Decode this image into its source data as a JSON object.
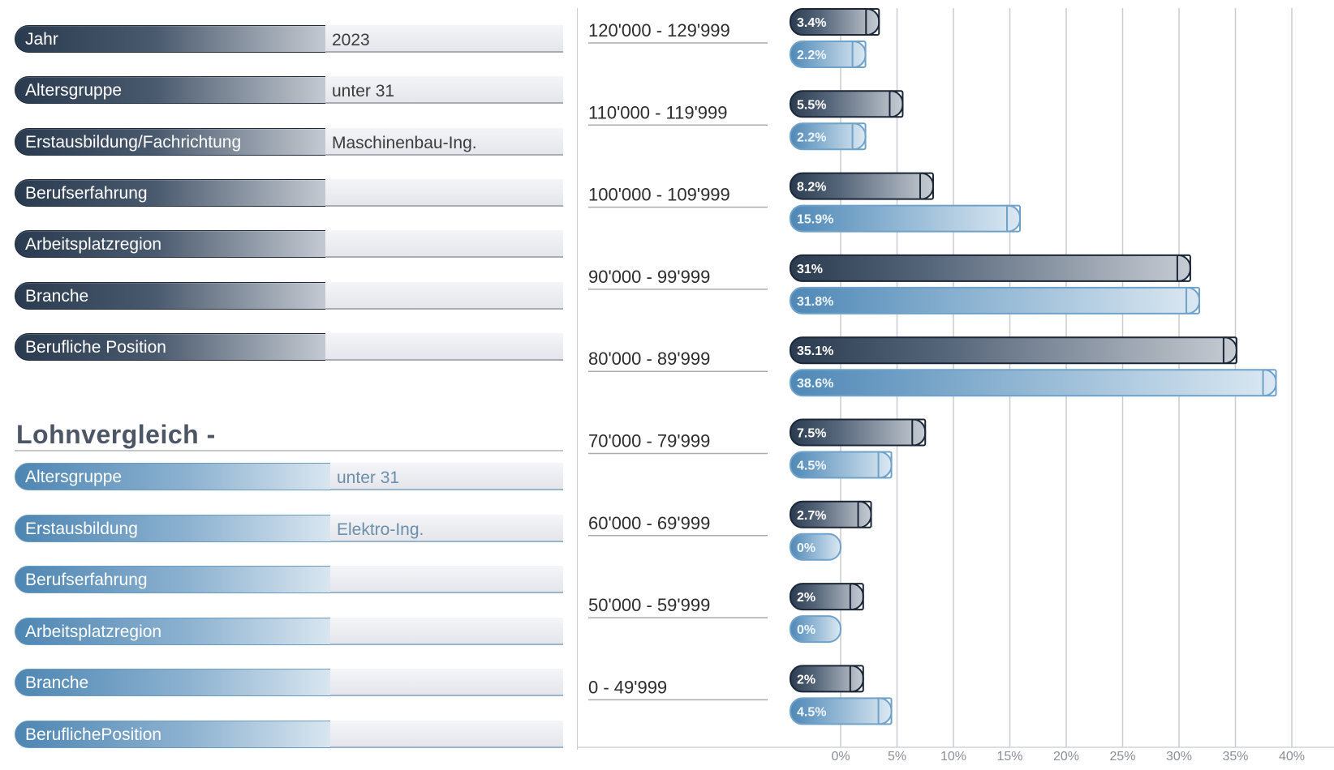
{
  "primary_filters": [
    {
      "label": "Jahr",
      "value": "2023"
    },
    {
      "label": "Altersgruppe",
      "value": "unter 31"
    },
    {
      "label": "Erstausbildung/Fachrichtung",
      "value": "Maschinenbau-Ing."
    },
    {
      "label": "Berufserfahrung",
      "value": ""
    },
    {
      "label": "Arbeitsplatzregion",
      "value": ""
    },
    {
      "label": "Branche",
      "value": ""
    },
    {
      "label": "Berufliche Position",
      "value": ""
    }
  ],
  "comparison": {
    "title": "Lohnvergleich  -",
    "filters": [
      {
        "label": "Altersgruppe",
        "value": "unter 31"
      },
      {
        "label": "Erstausbildung",
        "value": "Elektro-Ing."
      },
      {
        "label": "Berufserfahrung",
        "value": ""
      },
      {
        "label": "Arbeitsplatzregion",
        "value": ""
      },
      {
        "label": "Branche",
        "value": ""
      },
      {
        "label": "BeruflichePosition",
        "value": ""
      }
    ]
  },
  "colors": {
    "primary_series": "#3a4a5e",
    "comparison_series": "#5d95c2",
    "gridline": "#c9ccd1"
  },
  "chart_data": {
    "type": "bar",
    "orientation": "horizontal",
    "categories": [
      "120'000 - 129'999",
      "110'000 - 119'999",
      "100'000 - 109'999",
      "90'000 - 99'999",
      "80'000 - 89'999",
      "70'000 - 79'999",
      "60'000 - 69'999",
      "50'000 - 59'999",
      "0 - 49'999"
    ],
    "series": [
      {
        "values": [
          3.4,
          5.5,
          8.2,
          31,
          35.1,
          7.5,
          2.7,
          2,
          2
        ],
        "labels": [
          "3.4%",
          "5.5%",
          "8.2%",
          "31%",
          "35.1%",
          "7.5%",
          "2.7%",
          "2%",
          "2%"
        ]
      },
      {
        "values": [
          2.2,
          2.2,
          15.9,
          31.8,
          38.6,
          4.5,
          0,
          0,
          4.5
        ],
        "labels": [
          "2.2%",
          "2.2%",
          "15.9%",
          "31.8%",
          "38.6%",
          "4.5%",
          "0%",
          "0%",
          "4.5%"
        ]
      }
    ],
    "xticks": [
      "0%",
      "5%",
      "10%",
      "15%",
      "20%",
      "25%",
      "30%",
      "35%",
      "40%"
    ],
    "xlim": [
      0,
      42
    ],
    "grid": true,
    "title": "",
    "xlabel": "",
    "ylabel": ""
  }
}
